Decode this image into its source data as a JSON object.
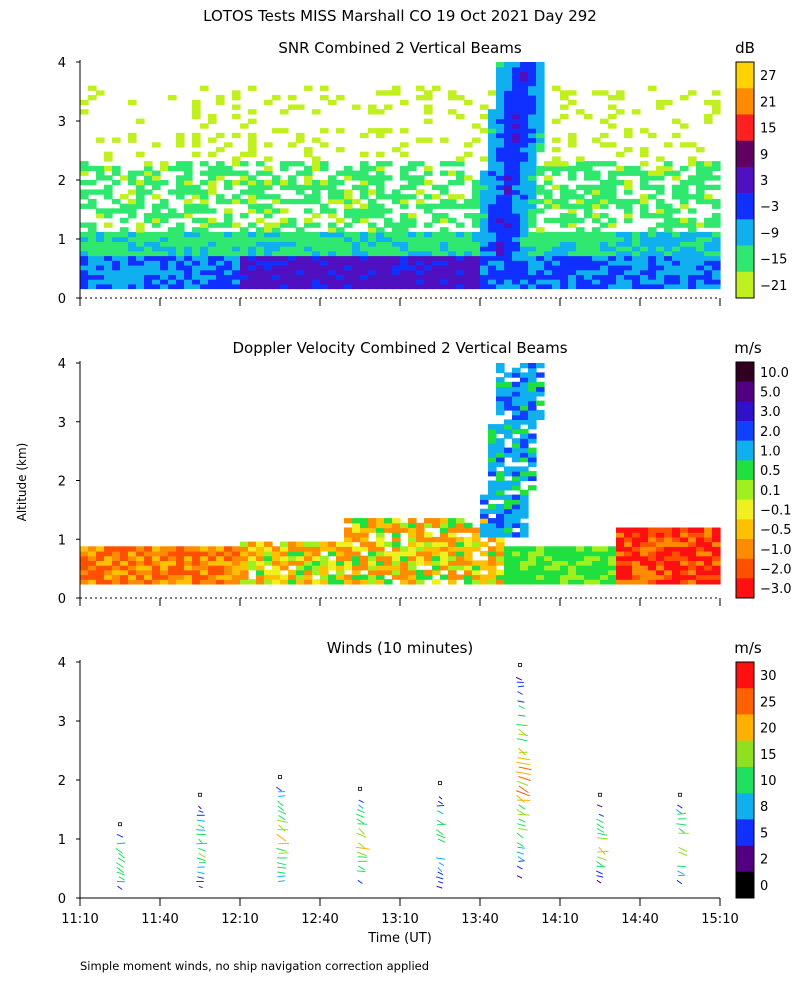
{
  "title": "LOTOS Tests MISS Marshall CO  19 Oct 2021 Day 292",
  "ylabel": "Altitude (km)",
  "xlabel": "Time (UT)",
  "footnote": "Simple moment winds, no ship navigation correction applied",
  "x_ticks": [
    "11:10",
    "11:40",
    "12:10",
    "12:40",
    "13:10",
    "13:40",
    "14:10",
    "14:40",
    "15:10"
  ],
  "y_ticks": [
    "0",
    "1",
    "2",
    "3",
    "4"
  ],
  "chart_data": [
    {
      "type": "heatmap",
      "title": "SNR Combined 2 Vertical Beams",
      "units": "dB",
      "xlim": [
        "11:10",
        "15:10"
      ],
      "ylim": [
        0,
        4
      ],
      "colorbar": {
        "labels": [
          "27",
          "21",
          "15",
          "9",
          "3",
          "−3",
          "−9",
          "−15",
          "−21"
        ],
        "colors": [
          "#ffd200",
          "#ff8c00",
          "#ff2020",
          "#600060",
          "#5010c0",
          "#1030ff",
          "#10b0f0",
          "#30e870",
          "#c0f020"
        ]
      },
      "features": [
        {
          "time": "11:10-11:25",
          "altitude_km": [
            0.2,
            1.2
          ],
          "snr_db": [
            -21,
            -9
          ]
        },
        {
          "time": "12:10-13:10",
          "altitude_km": [
            0.2,
            0.7
          ],
          "snr_db": [
            3,
            9
          ]
        },
        {
          "time": "13:40-13:55",
          "altitude_km": [
            0.5,
            4.0
          ],
          "snr_db": [
            -15,
            3
          ]
        },
        {
          "time": "11:10-14:40",
          "altitude_km": [
            1.0,
            2.5
          ],
          "snr_db": [
            -21,
            -15
          ]
        }
      ]
    },
    {
      "type": "heatmap",
      "title": "Doppler Velocity Combined 2 Vertical Beams",
      "units": "m/s",
      "xlim": [
        "11:10",
        "15:10"
      ],
      "ylim": [
        0,
        4
      ],
      "colorbar": {
        "labels": [
          "10.0",
          "5.0",
          "3.0",
          "2.0",
          "1.0",
          "0.5",
          "0.1",
          "−0.1",
          "−0.5",
          "−1.0",
          "−2.0",
          "−3.0"
        ],
        "colors": [
          "#300020",
          "#500080",
          "#3010c8",
          "#1040ff",
          "#10b0f0",
          "#20e040",
          "#a0f020",
          "#f0f020",
          "#ffc000",
          "#ff8c00",
          "#ff5000",
          "#ff1010"
        ]
      },
      "features": [
        {
          "time": "11:10-12:10",
          "altitude_km": [
            0.2,
            0.9
          ],
          "velocity_ms": [
            -2.0,
            0.5
          ]
        },
        {
          "time": "12:25-13:40",
          "altitude_km": [
            0.3,
            1.4
          ],
          "velocity_ms": [
            -2.0,
            0.5
          ]
        },
        {
          "time": "13:45-13:55",
          "altitude_km": [
            1.0,
            4.0
          ],
          "velocity_ms": [
            0.5,
            2.0
          ]
        },
        {
          "time": "14:20-15:10",
          "altitude_km": [
            0.3,
            1.2
          ],
          "velocity_ms": [
            -3.0,
            -1.0
          ]
        }
      ]
    },
    {
      "type": "scatter",
      "title": "Winds (10 minutes)",
      "units": "m/s",
      "xlim": [
        "11:10",
        "15:10"
      ],
      "ylim": [
        0,
        4
      ],
      "colorbar": {
        "labels": [
          "30",
          "25",
          "20",
          "15",
          "10",
          "8",
          "5",
          "2",
          "0"
        ],
        "colors": [
          "#ff1010",
          "#ff6000",
          "#ffb000",
          "#90e020",
          "#20e060",
          "#10b0f0",
          "#1030ff",
          "#500080",
          "#000000"
        ]
      },
      "profiles": [
        {
          "time": "11:25",
          "altitude_km": [
            0.2,
            1.1
          ],
          "speed_ms": [
            5,
            15
          ]
        },
        {
          "time": "11:55",
          "altitude_km": [
            0.2,
            1.6
          ],
          "speed_ms": [
            2,
            15
          ]
        },
        {
          "time": "12:25",
          "altitude_km": [
            0.2,
            1.9
          ],
          "speed_ms": [
            5,
            20
          ]
        },
        {
          "time": "12:55",
          "altitude_km": [
            0.3,
            1.7
          ],
          "speed_ms": [
            5,
            20
          ]
        },
        {
          "time": "13:25",
          "altitude_km": [
            0.2,
            1.8
          ],
          "speed_ms": [
            2,
            15
          ]
        },
        {
          "time": "13:55",
          "altitude_km": [
            0.3,
            3.8
          ],
          "speed_ms": [
            2,
            25
          ]
        },
        {
          "time": "14:25",
          "altitude_km": [
            0.3,
            1.6
          ],
          "speed_ms": [
            2,
            20
          ]
        },
        {
          "time": "14:55",
          "altitude_km": [
            0.3,
            1.6
          ],
          "speed_ms": [
            5,
            20
          ]
        }
      ]
    }
  ]
}
